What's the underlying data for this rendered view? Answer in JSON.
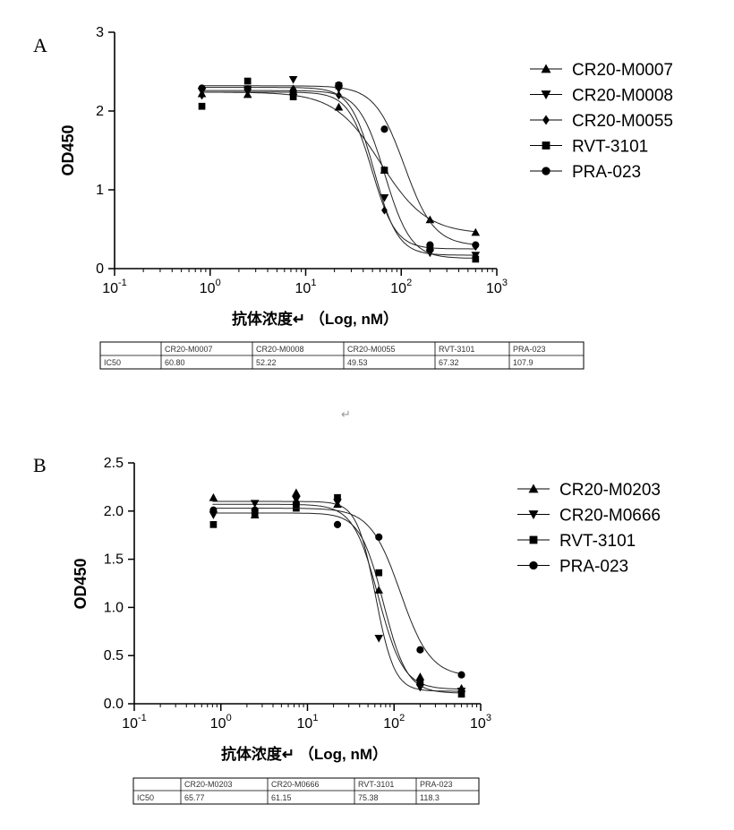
{
  "stray_mark": "↵",
  "chart_data": [
    {
      "panel": "A",
      "type": "scatter",
      "xscale": "log",
      "xlim": [
        0.1,
        1000
      ],
      "ylim": [
        0,
        3
      ],
      "yticks": [
        0,
        1,
        2,
        3
      ],
      "ylabel": "OD450",
      "xlabel": "抗体浓度↵ （Log, nM）",
      "xtick_labels": [
        "10-1",
        "100",
        "101",
        "102",
        "103"
      ],
      "legend_position": "right",
      "series": [
        {
          "name": "CR20-M0007",
          "marker": "triangle-up",
          "x": [
            0.82,
            2.47,
            7.41,
            22.2,
            66.7,
            200,
            600
          ],
          "y": [
            2.22,
            2.21,
            2.25,
            2.05,
            1.25,
            0.62,
            0.46
          ],
          "fit": {
            "top": 2.24,
            "bottom": 0.44,
            "ec50": 60.8,
            "hill": 1.8
          }
        },
        {
          "name": "CR20-M0008",
          "marker": "triangle-down",
          "x": [
            0.82,
            2.47,
            7.41,
            22.2,
            66.7,
            200,
            600
          ],
          "y": [
            2.25,
            2.28,
            2.4,
            2.28,
            0.9,
            0.2,
            0.17
          ],
          "fit": {
            "top": 2.3,
            "bottom": 0.17,
            "ec50": 52.2,
            "hill": 3.5
          }
        },
        {
          "name": "CR20-M0055",
          "marker": "diamond",
          "x": [
            0.82,
            2.47,
            7.41,
            22.2,
            66.7,
            200,
            600
          ],
          "y": [
            2.2,
            2.26,
            2.28,
            2.2,
            0.74,
            0.25,
            0.28
          ],
          "fit": {
            "top": 2.24,
            "bottom": 0.25,
            "ec50": 49.5,
            "hill": 3.5
          }
        },
        {
          "name": "RVT-3101",
          "marker": "square",
          "x": [
            0.82,
            2.47,
            7.41,
            22.2,
            66.7,
            200,
            600
          ],
          "y": [
            2.06,
            2.38,
            2.18,
            2.32,
            1.25,
            0.26,
            0.12
          ],
          "fit": {
            "top": 2.26,
            "bottom": 0.13,
            "ec50": 67.3,
            "hill": 3.2
          }
        },
        {
          "name": "PRA-023",
          "marker": "circle",
          "x": [
            0.82,
            2.47,
            7.41,
            22.2,
            66.7,
            200,
            600
          ],
          "y": [
            2.29,
            2.28,
            2.25,
            2.33,
            1.77,
            0.3,
            0.3
          ],
          "fit": {
            "top": 2.32,
            "bottom": 0.29,
            "ec50": 107.9,
            "hill": 2.8
          }
        }
      ],
      "table": {
        "header": [
          "",
          "CR20-M0007",
          "CR20-M0008",
          "CR20-M0055",
          "RVT-3101",
          "PRA-023"
        ],
        "row": [
          "IC50",
          "60.80",
          "52.22",
          "49.53",
          "67.32",
          "107.9"
        ]
      }
    },
    {
      "panel": "B",
      "type": "scatter",
      "xscale": "log",
      "xlim": [
        0.1,
        1000
      ],
      "ylim": [
        0,
        2.5
      ],
      "yticks": [
        0.0,
        0.5,
        1.0,
        1.5,
        2.0,
        2.5
      ],
      "ylabel": "OD450",
      "xlabel": "抗体浓度↵ （Log, nM）",
      "xtick_labels": [
        "10-1",
        "100",
        "101",
        "102",
        "103"
      ],
      "legend_position": "right",
      "series": [
        {
          "name": "CR20-M0203",
          "marker": "triangle-up",
          "x": [
            0.82,
            2.47,
            7.41,
            22.2,
            66.7,
            200,
            600
          ],
          "y": [
            2.14,
            1.96,
            2.19,
            2.07,
            1.18,
            0.28,
            0.16
          ],
          "fit": {
            "top": 2.07,
            "bottom": 0.15,
            "ec50": 65.8,
            "hill": 3.0
          }
        },
        {
          "name": "CR20-M0666",
          "marker": "triangle-down",
          "x": [
            0.82,
            2.47,
            7.41,
            22.2,
            66.7,
            200,
            600
          ],
          "y": [
            1.96,
            2.08,
            2.12,
            2.09,
            0.68,
            0.17,
            0.13
          ],
          "fit": {
            "top": 2.1,
            "bottom": 0.13,
            "ec50": 61.2,
            "hill": 4.0
          }
        },
        {
          "name": "RVT-3101",
          "marker": "square",
          "x": [
            0.82,
            2.47,
            7.41,
            22.2,
            66.7,
            200,
            600
          ],
          "y": [
            1.86,
            1.96,
            2.03,
            2.14,
            1.36,
            0.22,
            0.1
          ],
          "fit": {
            "top": 1.98,
            "bottom": 0.11,
            "ec50": 75.4,
            "hill": 3.2
          }
        },
        {
          "name": "PRA-023",
          "marker": "circle",
          "x": [
            0.82,
            2.47,
            7.41,
            22.2,
            66.7,
            200,
            600
          ],
          "y": [
            2.01,
            2.01,
            2.08,
            1.86,
            1.73,
            0.56,
            0.3
          ],
          "fit": {
            "top": 2.03,
            "bottom": 0.28,
            "ec50": 118.3,
            "hill": 2.5
          }
        }
      ],
      "table": {
        "header": [
          "",
          "CR20-M0203",
          "CR20-M0666",
          "RVT-3101",
          "PRA-023"
        ],
        "row": [
          "IC50",
          "65.77",
          "61.15",
          "75.38",
          "118.3"
        ]
      }
    }
  ]
}
